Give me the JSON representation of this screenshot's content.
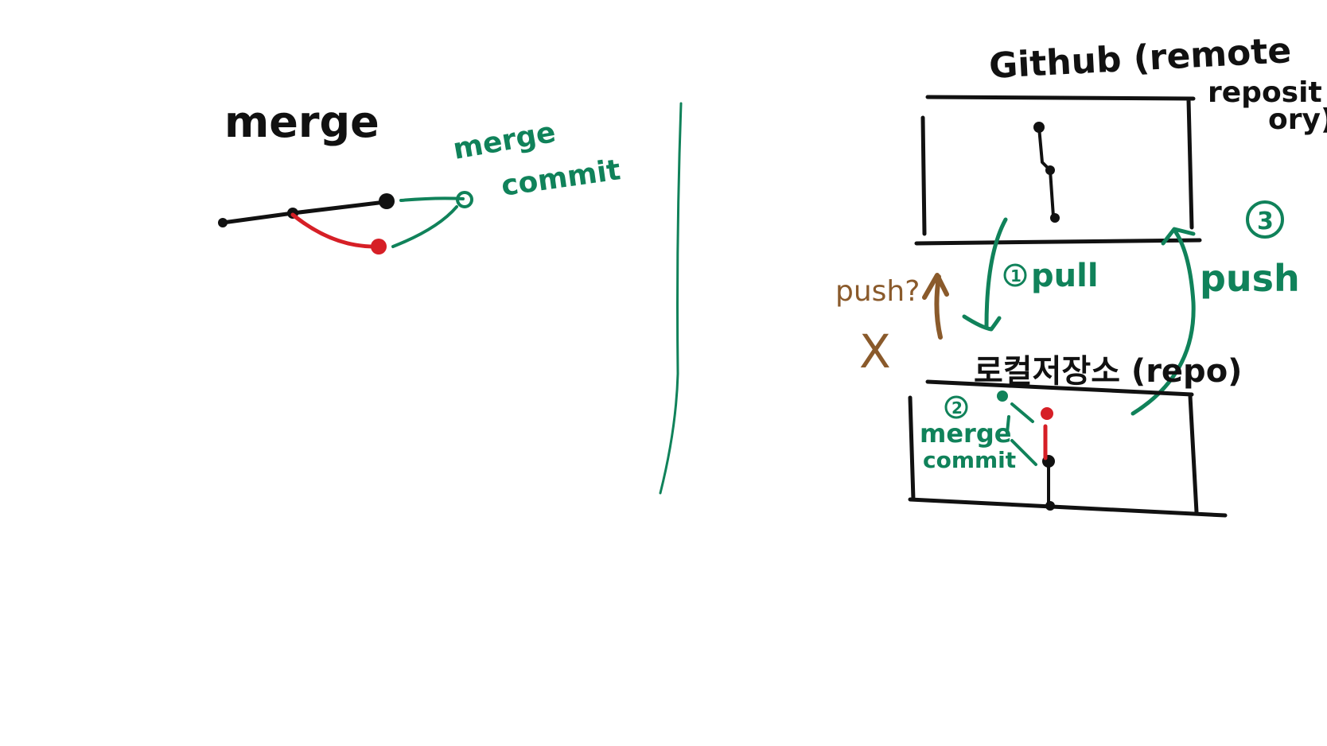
{
  "colors": {
    "background": "#ffffff",
    "ink_black": "#111111",
    "ink_green": "#10825a",
    "ink_red": "#d61f26",
    "ink_brown": "#8a5a2b"
  },
  "left_panel": {
    "title": "merge",
    "merge_commit_label_line1": "merge",
    "merge_commit_label_line2": "commit"
  },
  "right_panel": {
    "remote_label_line1": "Github (remote",
    "remote_label_line2": "reposit",
    "remote_label_line3": "ory)",
    "local_label": "로컬저장소 (repo)",
    "step1_number": "1",
    "step1_label": "pull",
    "step2_number": "2",
    "step2_label_line1": "merge",
    "step2_label_line2": "commit",
    "step3_number": "3",
    "step3_label": "push",
    "push_question_label": "push?",
    "push_rejected_mark": "X"
  }
}
